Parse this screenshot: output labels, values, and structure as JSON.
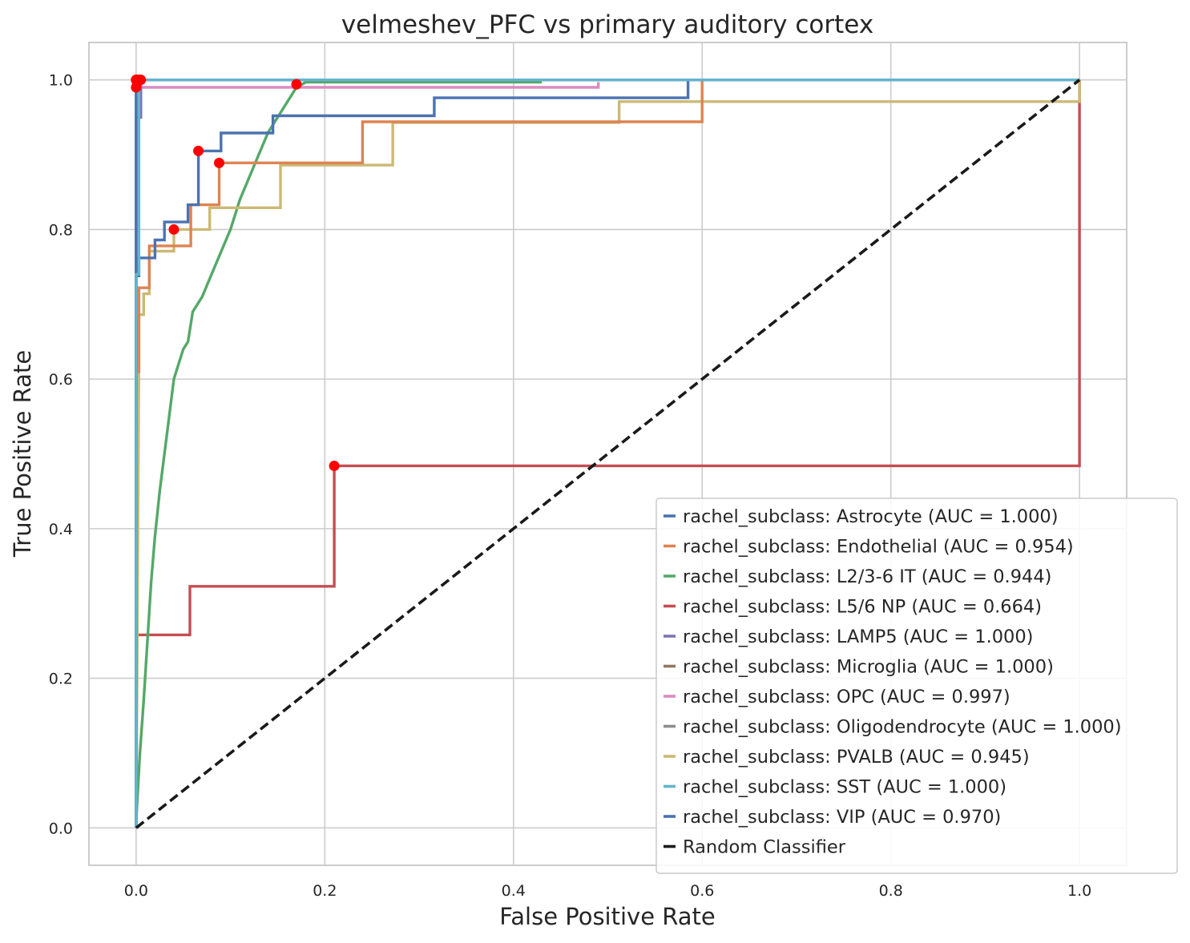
{
  "chart_data": {
    "type": "line",
    "title": "velmeshev_PFC vs primary auditory cortex",
    "xlabel": "False Positive Rate",
    "ylabel": "True Positive Rate",
    "xlim": [
      -0.05,
      1.05
    ],
    "ylim": [
      -0.05,
      1.05
    ],
    "x_ticks": [
      0.0,
      0.2,
      0.4,
      0.6,
      0.8,
      1.0
    ],
    "y_ticks": [
      0.0,
      0.2,
      0.4,
      0.6,
      0.8,
      1.0
    ],
    "x_tick_labels": [
      "0.0",
      "0.2",
      "0.4",
      "0.6",
      "0.8",
      "1.0"
    ],
    "y_tick_labels": [
      "0.0",
      "0.2",
      "0.4",
      "0.6",
      "0.8",
      "1.0"
    ],
    "grid": true,
    "legend_position": "lower-right",
    "series": [
      {
        "name": "rachel_subclass: Astrocyte (AUC = 1.000)",
        "color": "#4c72b0",
        "x": [
          0,
          0,
          0,
          1
        ],
        "y": [
          0,
          0.5,
          1.0,
          1.0
        ],
        "marker": [
          0,
          1.0
        ]
      },
      {
        "name": "rachel_subclass: Endothelial (AUC = 0.954)",
        "color": "#dd8452",
        "x": [
          0,
          0,
          0.003,
          0.003,
          0.014,
          0.014,
          0.058,
          0.058,
          0.088,
          0.088,
          0.24,
          0.24,
          0.6,
          0.6,
          1.0
        ],
        "y": [
          0,
          0.61,
          0.61,
          0.722,
          0.722,
          0.778,
          0.778,
          0.833,
          0.833,
          0.889,
          0.889,
          0.944,
          0.944,
          1.0,
          1.0
        ],
        "marker": [
          0.088,
          0.889
        ]
      },
      {
        "name": "rachel_subclass: L2/3-6 IT (AUC = 0.944)",
        "color": "#55a868",
        "x": [
          0,
          0.004,
          0.008,
          0.012,
          0.016,
          0.02,
          0.025,
          0.03,
          0.035,
          0.04,
          0.045,
          0.05,
          0.055,
          0.06,
          0.07,
          0.08,
          0.09,
          0.1,
          0.11,
          0.12,
          0.13,
          0.14,
          0.15,
          0.16,
          0.17,
          0.18,
          0.3,
          0.43
        ],
        "y": [
          0.01,
          0.1,
          0.17,
          0.25,
          0.33,
          0.39,
          0.45,
          0.5,
          0.55,
          0.6,
          0.62,
          0.64,
          0.65,
          0.69,
          0.71,
          0.74,
          0.77,
          0.8,
          0.84,
          0.87,
          0.9,
          0.93,
          0.95,
          0.97,
          0.99,
          0.997,
          0.997,
          0.997
        ],
        "marker": [
          0.17,
          0.994
        ]
      },
      {
        "name": "rachel_subclass: L5/6 NP (AUC = 0.664)",
        "color": "#c44e52",
        "x": [
          0,
          0,
          0.057,
          0.057,
          0.21,
          0.21,
          1.0,
          1.0
        ],
        "y": [
          0,
          0.258,
          0.258,
          0.323,
          0.323,
          0.484,
          0.484,
          1.0
        ],
        "marker": [
          0.21,
          0.484
        ]
      },
      {
        "name": "rachel_subclass: LAMP5 (AUC = 1.000)",
        "color": "#8172b3",
        "x": [
          0,
          0,
          0.005,
          0.005,
          1.0
        ],
        "y": [
          0,
          0.95,
          0.95,
          1.0,
          1.0
        ],
        "marker": [
          0.005,
          1.0
        ]
      },
      {
        "name": "rachel_subclass: Microglia (AUC = 1.000)",
        "color": "#937860",
        "x": [
          0,
          0,
          1
        ],
        "y": [
          0,
          1.0,
          1.0
        ],
        "marker": [
          0,
          1.0
        ]
      },
      {
        "name": "rachel_subclass: OPC (AUC = 0.997)",
        "color": "#da8bc3",
        "x": [
          0,
          0,
          0.49,
          0.49
        ],
        "y": [
          0,
          0.99,
          0.99,
          0.997
        ],
        "marker": [
          0,
          0.99
        ]
      },
      {
        "name": "rachel_subclass: Oligodendrocyte (AUC = 1.000)",
        "color": "#8c8c8c",
        "x": [
          0,
          0,
          1
        ],
        "y": [
          0,
          1.0,
          1.0
        ],
        "marker": [
          0,
          1.0
        ]
      },
      {
        "name": "rachel_subclass: PVALB (AUC = 0.945)",
        "color": "#ccb974",
        "x": [
          0,
          0.003,
          0.003,
          0.008,
          0.008,
          0.014,
          0.014,
          0.04,
          0.04,
          0.078,
          0.078,
          0.153,
          0.153,
          0.272,
          0.272,
          0.512,
          0.512,
          1.0,
          1.0
        ],
        "y": [
          0,
          0.63,
          0.686,
          0.686,
          0.714,
          0.714,
          0.771,
          0.771,
          0.8,
          0.8,
          0.829,
          0.829,
          0.886,
          0.886,
          0.943,
          0.943,
          0.971,
          0.971,
          1.0
        ],
        "marker": [
          0.04,
          0.8
        ]
      },
      {
        "name": "rachel_subclass: SST (AUC = 1.000)",
        "color": "#64b5cd",
        "x": [
          0,
          0,
          0.003,
          0.003,
          1.0
        ],
        "y": [
          0,
          0.74,
          0.74,
          1.0,
          1.0
        ],
        "marker": [
          0.003,
          1.0
        ]
      },
      {
        "name": "rachel_subclass: VIP (AUC = 0.970)",
        "color": "#4c72b0",
        "x": [
          0,
          0,
          0.003,
          0.003,
          0.02,
          0.02,
          0.03,
          0.03,
          0.055,
          0.055,
          0.066,
          0.066,
          0.09,
          0.09,
          0.145,
          0.145,
          0.316,
          0.316,
          0.585,
          0.585,
          1.0
        ],
        "y": [
          0,
          0.738,
          0.738,
          0.762,
          0.762,
          0.786,
          0.786,
          0.81,
          0.81,
          0.833,
          0.833,
          0.905,
          0.905,
          0.929,
          0.929,
          0.952,
          0.952,
          0.976,
          0.976,
          1.0,
          1.0
        ],
        "marker": [
          0.066,
          0.905
        ]
      },
      {
        "name": "Random Classifier",
        "color": "#1a1a1a",
        "dashed": true,
        "x": [
          0,
          1
        ],
        "y": [
          0,
          1
        ]
      }
    ]
  }
}
